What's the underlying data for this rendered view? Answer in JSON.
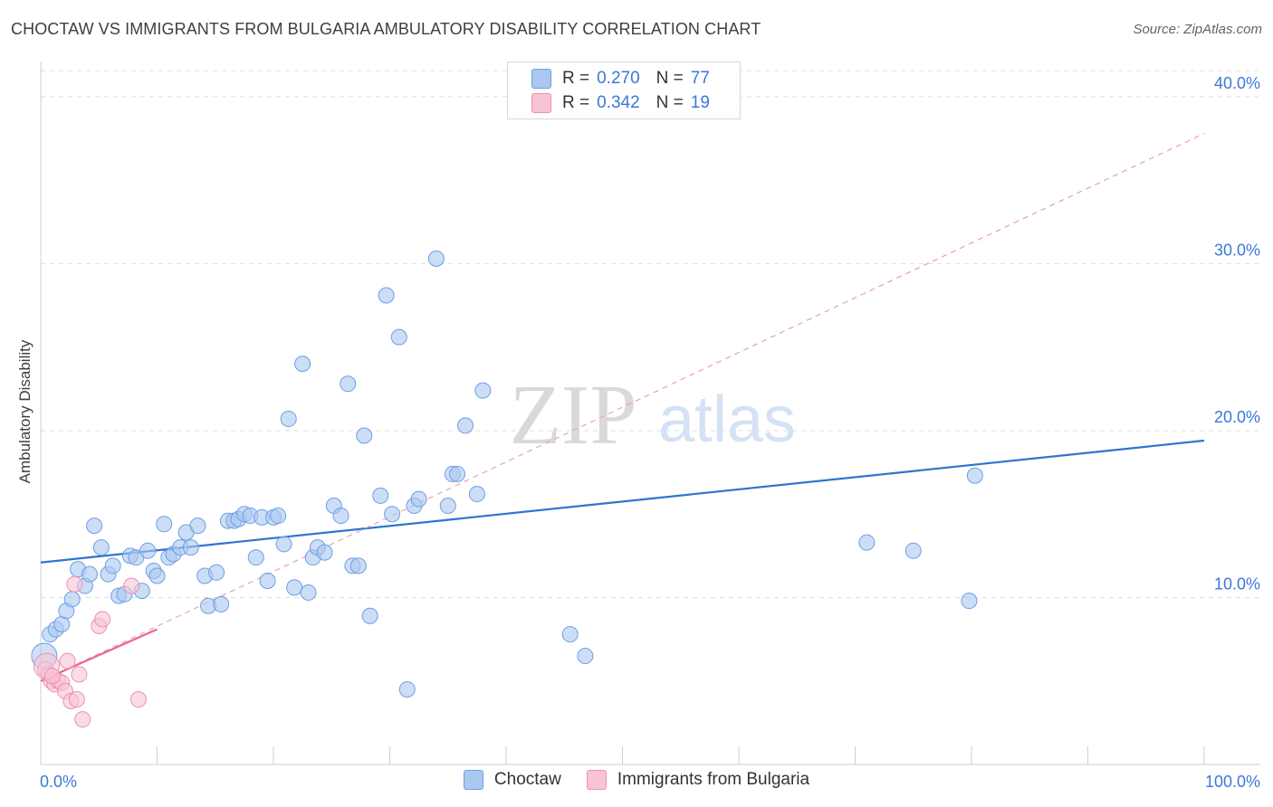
{
  "title": "CHOCTAW VS IMMIGRANTS FROM BULGARIA AMBULATORY DISABILITY CORRELATION CHART",
  "source": "Source: ZipAtlas.com",
  "watermark": {
    "zip": "ZIP",
    "atlas": "atlas"
  },
  "legend": {
    "r_label": "R =",
    "n_label": "N =",
    "rows": [
      {
        "r": "0.270",
        "n": "77",
        "color": "#aac8f0",
        "border": "#6d9ee6"
      },
      {
        "r": "0.342",
        "n": "19",
        "color": "#f8c4d4",
        "border": "#ec8fb0"
      }
    ]
  },
  "bottom_legend": [
    "Choctaw",
    "Immigrants from Bulgaria"
  ],
  "chart_data": {
    "type": "scatter",
    "title": "CHOCTAW VS IMMIGRANTS FROM BULGARIA AMBULATORY DISABILITY CORRELATION CHART",
    "xlabel": "",
    "ylabel": "Ambulatory Disability",
    "xlim": [
      0,
      100
    ],
    "ylim": [
      0,
      42
    ],
    "x_tick_labels": [
      "0.0%",
      "100.0%"
    ],
    "y_ticks": [
      10,
      20,
      30,
      40
    ],
    "y_tick_labels": [
      "10.0%",
      "20.0%",
      "30.0%",
      "40.0%"
    ],
    "series": [
      {
        "name": "Choctaw",
        "color": "#aac8f0",
        "stroke": "#6d9ee6",
        "trend": {
          "x0": 0,
          "y0": 12.1,
          "x1": 100,
          "y1": 19.4,
          "color": "#2f74d0",
          "style": "solid"
        },
        "points": [
          [
            0.3,
            6.5
          ],
          [
            0.8,
            7.8
          ],
          [
            1.3,
            8.1
          ],
          [
            1.8,
            8.4
          ],
          [
            2.2,
            9.2
          ],
          [
            2.7,
            9.9
          ],
          [
            3.2,
            11.7
          ],
          [
            3.8,
            10.7
          ],
          [
            4.2,
            11.4
          ],
          [
            4.6,
            14.3
          ],
          [
            5.2,
            13.0
          ],
          [
            5.8,
            11.4
          ],
          [
            6.2,
            11.9
          ],
          [
            6.7,
            10.1
          ],
          [
            7.2,
            10.2
          ],
          [
            7.7,
            12.5
          ],
          [
            8.2,
            12.4
          ],
          [
            8.7,
            10.4
          ],
          [
            9.2,
            12.8
          ],
          [
            9.7,
            11.6
          ],
          [
            10.0,
            11.3
          ],
          [
            10.6,
            14.4
          ],
          [
            11.0,
            12.4
          ],
          [
            11.4,
            12.6
          ],
          [
            12.0,
            13.0
          ],
          [
            12.5,
            13.9
          ],
          [
            12.9,
            13.0
          ],
          [
            13.5,
            14.3
          ],
          [
            14.1,
            11.3
          ],
          [
            14.4,
            9.5
          ],
          [
            15.1,
            11.5
          ],
          [
            15.5,
            9.6
          ],
          [
            16.1,
            14.6
          ],
          [
            16.6,
            14.6
          ],
          [
            17.0,
            14.7
          ],
          [
            17.5,
            15.0
          ],
          [
            18.0,
            14.9
          ],
          [
            18.5,
            12.4
          ],
          [
            19.0,
            14.8
          ],
          [
            19.5,
            11.0
          ],
          [
            20.0,
            14.8
          ],
          [
            20.4,
            14.9
          ],
          [
            20.9,
            13.2
          ],
          [
            21.3,
            20.7
          ],
          [
            21.8,
            10.6
          ],
          [
            22.5,
            24.0
          ],
          [
            23.0,
            10.3
          ],
          [
            23.4,
            12.4
          ],
          [
            23.8,
            13.0
          ],
          [
            24.4,
            12.7
          ],
          [
            25.2,
            15.5
          ],
          [
            25.8,
            14.9
          ],
          [
            26.4,
            22.8
          ],
          [
            26.8,
            11.9
          ],
          [
            27.3,
            11.9
          ],
          [
            27.8,
            19.7
          ],
          [
            28.3,
            8.9
          ],
          [
            29.2,
            16.1
          ],
          [
            29.7,
            28.1
          ],
          [
            30.2,
            15.0
          ],
          [
            30.8,
            25.6
          ],
          [
            31.5,
            4.5
          ],
          [
            32.1,
            15.5
          ],
          [
            32.5,
            15.9
          ],
          [
            34.0,
            30.3
          ],
          [
            35.0,
            15.5
          ],
          [
            35.4,
            17.4
          ],
          [
            35.8,
            17.4
          ],
          [
            36.5,
            20.3
          ],
          [
            37.5,
            16.2
          ],
          [
            38.0,
            22.4
          ],
          [
            45.5,
            7.8
          ],
          [
            46.8,
            6.5
          ],
          [
            71.0,
            13.3
          ],
          [
            75.0,
            12.8
          ],
          [
            79.8,
            9.8
          ],
          [
            80.3,
            17.3
          ]
        ]
      },
      {
        "name": "Immigrants from Bulgaria",
        "color": "#f8c4d4",
        "stroke": "#ec8fb0",
        "trend": {
          "x0": 0,
          "y0": 5.0,
          "x1": 10,
          "y1": 8.1,
          "color": "#e8668f",
          "style": "solid"
        },
        "trend_extended": {
          "x0": 0,
          "y0": 5.0,
          "x1": 100,
          "y1": 37.8,
          "color": "#e8a0b8",
          "style": "dashed"
        },
        "points": [
          [
            0.4,
            5.7
          ],
          [
            0.7,
            5.4
          ],
          [
            0.9,
            5.0
          ],
          [
            1.2,
            4.8
          ],
          [
            1.5,
            5.0
          ],
          [
            1.8,
            4.9
          ],
          [
            2.1,
            4.4
          ],
          [
            2.3,
            6.2
          ],
          [
            2.6,
            3.8
          ],
          [
            2.9,
            10.8
          ],
          [
            3.1,
            3.9
          ],
          [
            3.3,
            5.4
          ],
          [
            3.6,
            2.7
          ],
          [
            5.0,
            8.3
          ],
          [
            5.3,
            8.7
          ],
          [
            7.8,
            10.7
          ],
          [
            8.4,
            3.9
          ],
          [
            0.5,
            5.9
          ],
          [
            1.0,
            5.3
          ]
        ]
      }
    ]
  }
}
